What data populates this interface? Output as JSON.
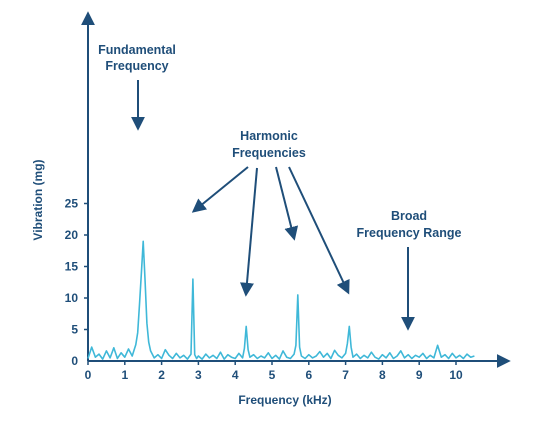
{
  "colors": {
    "axis": "#1f4e79",
    "signal": "#3fb8d8",
    "text": "#1f4e79"
  },
  "chart_data": {
    "type": "line",
    "xlabel": "Frequency (kHz)",
    "ylabel": "Vibration (mg)",
    "xlim": [
      0,
      11
    ],
    "ylim": [
      0,
      28
    ],
    "xticks": [
      "0",
      "1",
      "2",
      "3",
      "4",
      "5",
      "6",
      "7",
      "8",
      "9",
      "10"
    ],
    "yticks": [
      "0",
      "5",
      "10",
      "15",
      "20",
      "25"
    ],
    "grid": false,
    "series": [
      {
        "x": [
          0.0,
          0.1,
          0.2,
          0.3,
          0.4,
          0.5,
          0.6,
          0.7,
          0.8,
          0.9,
          1.0,
          1.1,
          1.2,
          1.3,
          1.35,
          1.4,
          1.45,
          1.5,
          1.55,
          1.6,
          1.65,
          1.7,
          1.8,
          1.9,
          2.0,
          2.1,
          2.2,
          2.3,
          2.4,
          2.5,
          2.6,
          2.7,
          2.8,
          2.85,
          2.9,
          2.95,
          3.0,
          3.1,
          3.2,
          3.3,
          3.4,
          3.5,
          3.6,
          3.7,
          3.8,
          3.9,
          4.0,
          4.1,
          4.2,
          4.25,
          4.3,
          4.35,
          4.4,
          4.5,
          4.6,
          4.7,
          4.8,
          4.9,
          5.0,
          5.1,
          5.2,
          5.3,
          5.4,
          5.5,
          5.6,
          5.65,
          5.7,
          5.75,
          5.8,
          5.9,
          6.0,
          6.1,
          6.2,
          6.3,
          6.4,
          6.5,
          6.6,
          6.7,
          6.8,
          6.9,
          7.0,
          7.05,
          7.1,
          7.15,
          7.2,
          7.3,
          7.4,
          7.5,
          7.6,
          7.7,
          7.8,
          7.9,
          8.0,
          8.1,
          8.2,
          8.3,
          8.4,
          8.5,
          8.6,
          8.7,
          8.8,
          8.9,
          9.0,
          9.1,
          9.2,
          9.3,
          9.4,
          9.5,
          9.6,
          9.7,
          9.8,
          9.9,
          10.0,
          10.1,
          10.2,
          10.3,
          10.4,
          10.5
        ],
        "y": [
          0.4,
          2.2,
          0.6,
          1.1,
          0.3,
          1.6,
          0.5,
          2.1,
          0.4,
          1.3,
          0.6,
          1.9,
          0.8,
          2.6,
          4.5,
          9.0,
          14.0,
          19.0,
          13.0,
          6.0,
          3.0,
          1.6,
          0.5,
          1.0,
          0.4,
          1.8,
          0.9,
          0.4,
          1.2,
          0.5,
          0.9,
          0.3,
          1.1,
          13.0,
          1.0,
          0.4,
          0.8,
          0.3,
          1.1,
          0.5,
          0.9,
          0.4,
          1.4,
          0.3,
          1.0,
          0.6,
          0.4,
          1.2,
          0.5,
          2.0,
          5.5,
          1.8,
          0.6,
          1.0,
          0.4,
          0.8,
          0.5,
          1.3,
          0.4,
          0.9,
          0.3,
          1.6,
          0.6,
          0.4,
          1.1,
          2.5,
          10.5,
          2.2,
          0.8,
          0.4,
          1.0,
          0.5,
          0.8,
          1.5,
          0.6,
          1.2,
          0.4,
          1.7,
          0.9,
          0.5,
          1.2,
          2.8,
          5.5,
          2.2,
          0.6,
          1.1,
          0.4,
          0.9,
          0.5,
          1.4,
          0.6,
          0.3,
          1.0,
          0.5,
          1.3,
          0.4,
          0.8,
          1.6,
          0.5,
          1.0,
          0.4,
          0.9,
          0.6,
          1.2,
          0.4,
          0.9,
          0.5,
          2.5,
          0.6,
          1.0,
          0.4,
          1.2,
          0.5,
          0.9,
          0.4,
          1.1,
          0.6,
          0.8
        ]
      }
    ],
    "annotations": [
      {
        "lines": [
          "Fundamental",
          "Frequency"
        ]
      },
      {
        "lines": [
          "Harmonic",
          "Frequencies"
        ]
      },
      {
        "lines": [
          "Broad",
          "Frequency Range"
        ]
      }
    ]
  }
}
